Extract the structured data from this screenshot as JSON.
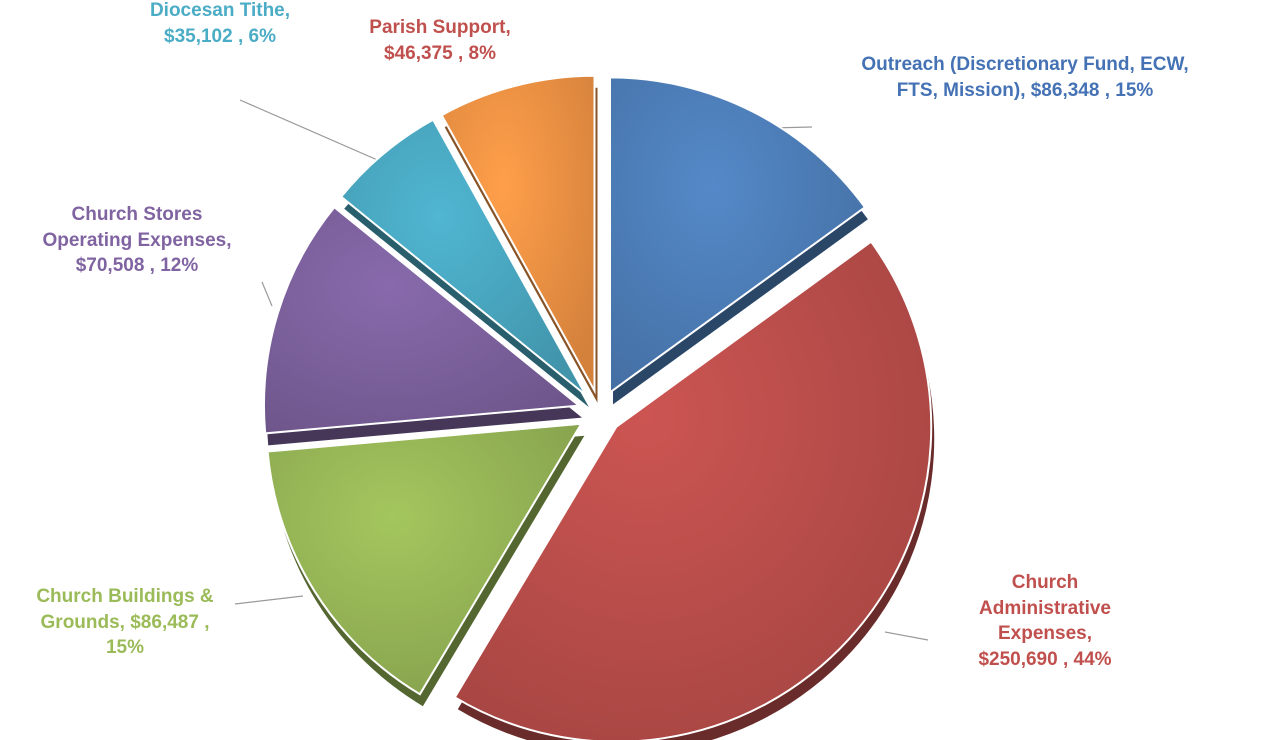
{
  "chart_data": {
    "type": "pie",
    "title": "",
    "start_angle_deg": 0,
    "slices": [
      {
        "key": "outreach",
        "value": 86348,
        "percent": 15,
        "color": "#4f81bd",
        "label_lines": [
          "Outreach (Discretionary Fund, ECW,",
          "FTS, Mission),  $86,348 , 15%"
        ]
      },
      {
        "key": "admin",
        "value": 250690,
        "percent": 44,
        "color": "#c0504d",
        "label_lines": [
          "Church",
          "Administrative",
          "Expenses,",
          "$250,690 , 44%"
        ]
      },
      {
        "key": "buildings",
        "value": 86487,
        "percent": 15,
        "color": "#9bbb59",
        "label_lines": [
          "Church Buildings &",
          "Grounds,  $86,487 ,",
          "15%"
        ]
      },
      {
        "key": "stores",
        "value": 70508,
        "percent": 12,
        "color": "#8064a2",
        "label_lines": [
          "Church Stores",
          "Operating Expenses,",
          "$70,508 , 12%"
        ]
      },
      {
        "key": "tithe",
        "value": 35102,
        "percent": 6,
        "color": "#4bacc6",
        "label_lines": [
          "Diocesan Tithe,",
          "$35,102 , 6%"
        ]
      },
      {
        "key": "parish",
        "value": 46375,
        "percent": 8,
        "color": "#f79646",
        "label_lines": [
          "Parish Support,",
          "$46,375 , 8%"
        ]
      }
    ]
  },
  "label_colors": {
    "outreach": "#4472b4",
    "admin": "#c0504d",
    "buildings": "#9bbb59",
    "stores": "#8064a2",
    "tithe": "#4bacc6",
    "parish": "#c0504d"
  }
}
